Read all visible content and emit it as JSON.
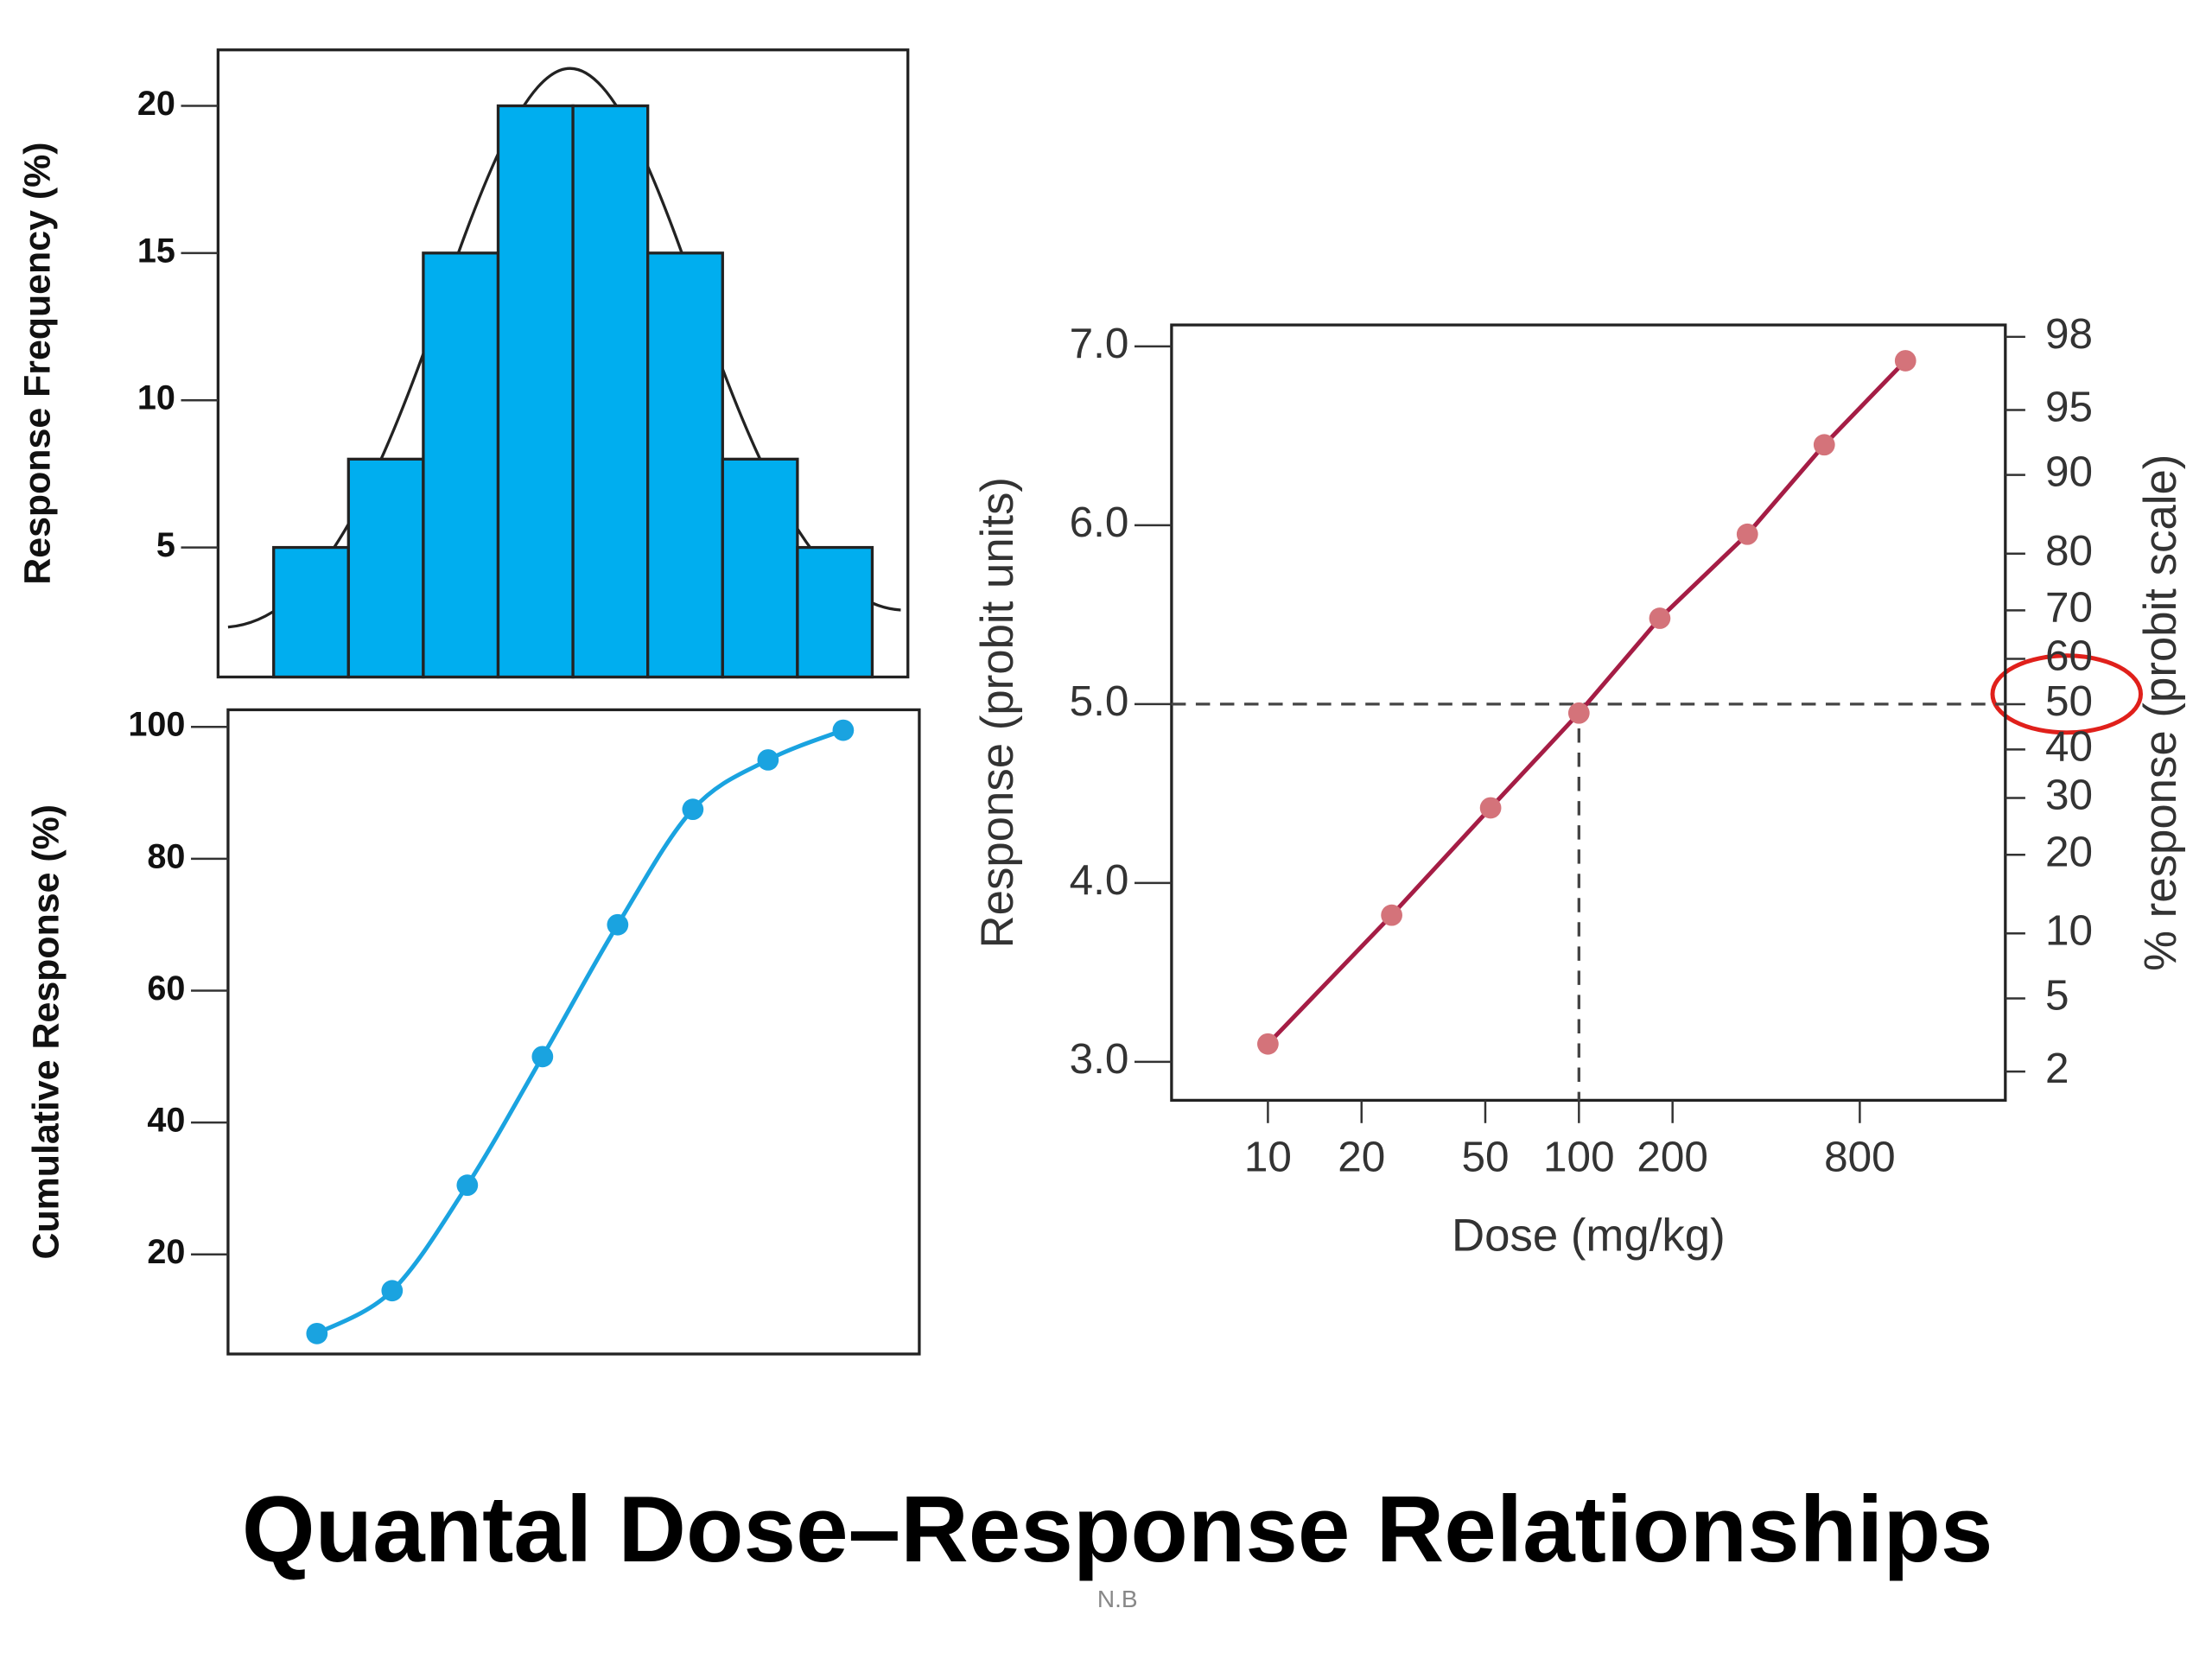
{
  "chart_data": [
    {
      "type": "bar",
      "ylabel": "Response Frequency (%)",
      "categories": [
        null,
        null,
        null,
        null,
        null,
        null,
        null,
        null
      ],
      "values": [
        5,
        8,
        15,
        20,
        20,
        15,
        8,
        5
      ],
      "color": "#00aeef",
      "ylim": [
        0.6,
        21.9
      ],
      "yticks": [
        5,
        10,
        15,
        20
      ]
    },
    {
      "type": "line",
      "ylabel": "Cumulative Response (%)",
      "categories": [
        null,
        null,
        null,
        null,
        null,
        null,
        null,
        null
      ],
      "values": [
        8,
        14.5,
        30.5,
        50,
        70,
        87.5,
        95,
        99.5
      ],
      "color": "#1aa3e0",
      "smooth": true,
      "ylim": [
        4.9,
        102.6
      ],
      "yticks": [
        20,
        40,
        60,
        80,
        100
      ]
    },
    {
      "type": "line",
      "xlabel": "Dose (mg/kg)",
      "ylabel": "Response (probit units)",
      "y2label": "% response (probit scale)",
      "x": [
        10,
        25,
        52,
        100,
        182,
        348,
        615,
        1122
      ],
      "values": [
        3.1,
        3.82,
        4.42,
        4.95,
        5.48,
        5.95,
        6.45,
        6.92
      ],
      "color": "#a51d45",
      "marker_color": "#d4737a",
      "smooth": false,
      "xscale": "log",
      "xlim": [
        4.9,
        2350
      ],
      "xticks": [
        10,
        20,
        50,
        100,
        200,
        800
      ],
      "ylim": [
        2.785,
        7.12
      ],
      "yticks": [
        {
          "value": 3,
          "label": "3.0"
        },
        {
          "value": 4,
          "label": "4.0"
        },
        {
          "value": 5,
          "label": "5.0"
        },
        {
          "value": 6,
          "label": "6.0"
        },
        {
          "value": 7,
          "label": "7.0"
        }
      ],
      "y2scale": "probit",
      "y2lim": [
        1.34,
        98.3
      ],
      "y2ticks": [
        2,
        5,
        10,
        20,
        30,
        40,
        50,
        60,
        70,
        80,
        90,
        95,
        98
      ],
      "ref_x": 100,
      "ref_y": 5
    }
  ],
  "title": "Quantal Dose–Response Relationships",
  "footer": "N.B"
}
